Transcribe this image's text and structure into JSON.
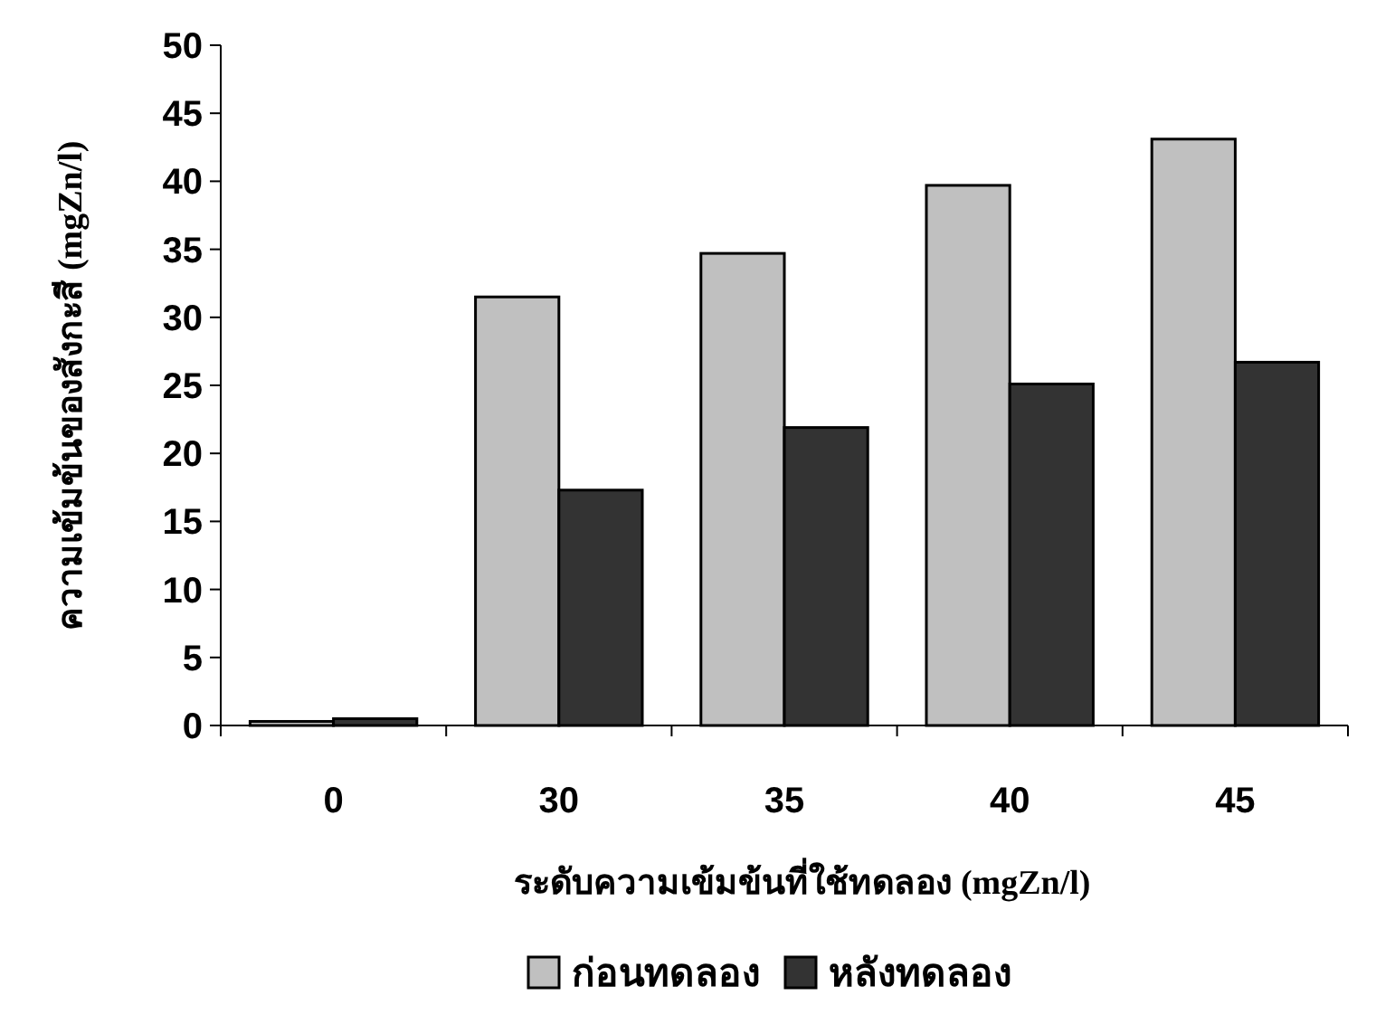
{
  "chart_data": {
    "type": "bar",
    "xlabel": "ระดับความเข้มข้นที่ใช้ทดลอง (mgZn/l)",
    "ylabel": "ความเข้มข้นของสังกะสี (mgZn/l)",
    "categories": [
      "0",
      "30",
      "35",
      "40",
      "45"
    ],
    "series": [
      {
        "name": "ก่อนทดลอง",
        "color": "#c0c0c0",
        "values": [
          0.3,
          31.5,
          34.7,
          39.7,
          43.1
        ]
      },
      {
        "name": "หลังทดลอง",
        "color": "#333333",
        "values": [
          0.5,
          17.3,
          21.9,
          25.1,
          26.7
        ]
      }
    ],
    "ylim": [
      0,
      50
    ],
    "yticks": [
      0,
      5,
      10,
      15,
      20,
      25,
      30,
      35,
      40,
      45,
      50
    ],
    "grid": false,
    "legend": "bottom"
  }
}
